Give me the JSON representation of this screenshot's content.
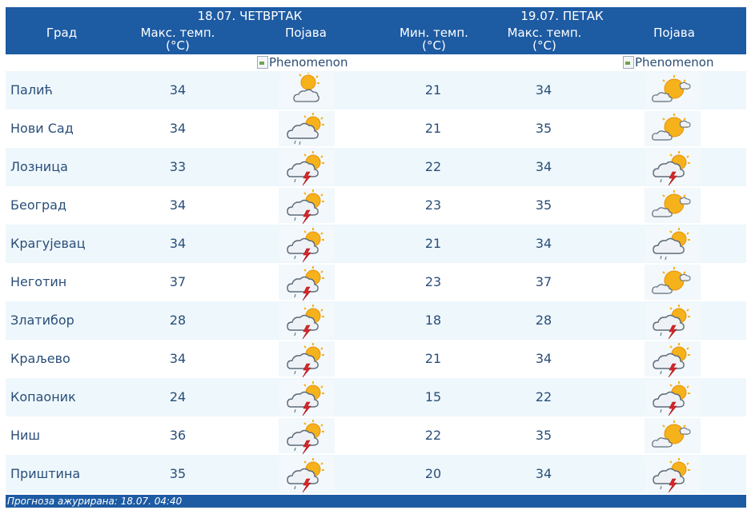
{
  "header": {
    "city_col": "Град",
    "day1": {
      "title": "18.07. ЧЕТВРТАК",
      "max_label_1": "Макс. темп.",
      "max_label_2": "(°C)",
      "phen_label": "Појава"
    },
    "day2": {
      "title": "19.07. ПЕТАК",
      "min_label_1": "Мин. темп.",
      "min_label_2": "(°C)",
      "max_label_1": "Макс. темп.",
      "max_label_2": "(°C)",
      "phen_label": "Појава"
    }
  },
  "broken_images": {
    "alt1": "Phenomenon",
    "alt2": "Phenomenon"
  },
  "rows": [
    {
      "city": "Палић",
      "d1_max": "34",
      "d1_icon": "partly-cloudy-icon",
      "d2_min": "21",
      "d2_max": "34",
      "d2_icon": "sunny-cloud-icon"
    },
    {
      "city": "Нови Сад",
      "d1_max": "34",
      "d1_icon": "cloud-sun-rain-icon",
      "d2_min": "21",
      "d2_max": "35",
      "d2_icon": "sunny-cloud-icon"
    },
    {
      "city": "Лозница",
      "d1_max": "33",
      "d1_icon": "thunderstorm-sun-icon",
      "d2_min": "22",
      "d2_max": "34",
      "d2_icon": "thunderstorm-sun-icon"
    },
    {
      "city": "Београд",
      "d1_max": "34",
      "d1_icon": "thunderstorm-sun-icon",
      "d2_min": "23",
      "d2_max": "35",
      "d2_icon": "sunny-cloud-icon"
    },
    {
      "city": "Крагујевац",
      "d1_max": "34",
      "d1_icon": "thunderstorm-sun-icon",
      "d2_min": "21",
      "d2_max": "34",
      "d2_icon": "cloud-sun-rain-icon"
    },
    {
      "city": "Неготин",
      "d1_max": "37",
      "d1_icon": "thunderstorm-sun-icon",
      "d2_min": "23",
      "d2_max": "37",
      "d2_icon": "sunny-cloud-icon"
    },
    {
      "city": "Златибор",
      "d1_max": "28",
      "d1_icon": "thunderstorm-sun-icon",
      "d2_min": "18",
      "d2_max": "28",
      "d2_icon": "thunderstorm-sun-icon"
    },
    {
      "city": "Краљево",
      "d1_max": "34",
      "d1_icon": "thunderstorm-sun-icon",
      "d2_min": "21",
      "d2_max": "34",
      "d2_icon": "thunderstorm-sun-icon"
    },
    {
      "city": "Копаоник",
      "d1_max": "24",
      "d1_icon": "thunderstorm-sun-icon",
      "d2_min": "15",
      "d2_max": "22",
      "d2_icon": "thunderstorm-sun-icon"
    },
    {
      "city": "Ниш",
      "d1_max": "36",
      "d1_icon": "thunderstorm-sun-icon",
      "d2_min": "22",
      "d2_max": "35",
      "d2_icon": "sunny-cloud-icon"
    },
    {
      "city": "Приштина",
      "d1_max": "35",
      "d1_icon": "thunderstorm-sun-icon",
      "d2_min": "20",
      "d2_max": "34",
      "d2_icon": "thunderstorm-sun-icon"
    }
  ],
  "footer": {
    "text": "Прогноза ажурирана:  18.07. 04:40"
  },
  "colors": {
    "header_bg": "#1d5ba3",
    "row_alt": "#eef7fc",
    "text": "#2a4e78"
  }
}
